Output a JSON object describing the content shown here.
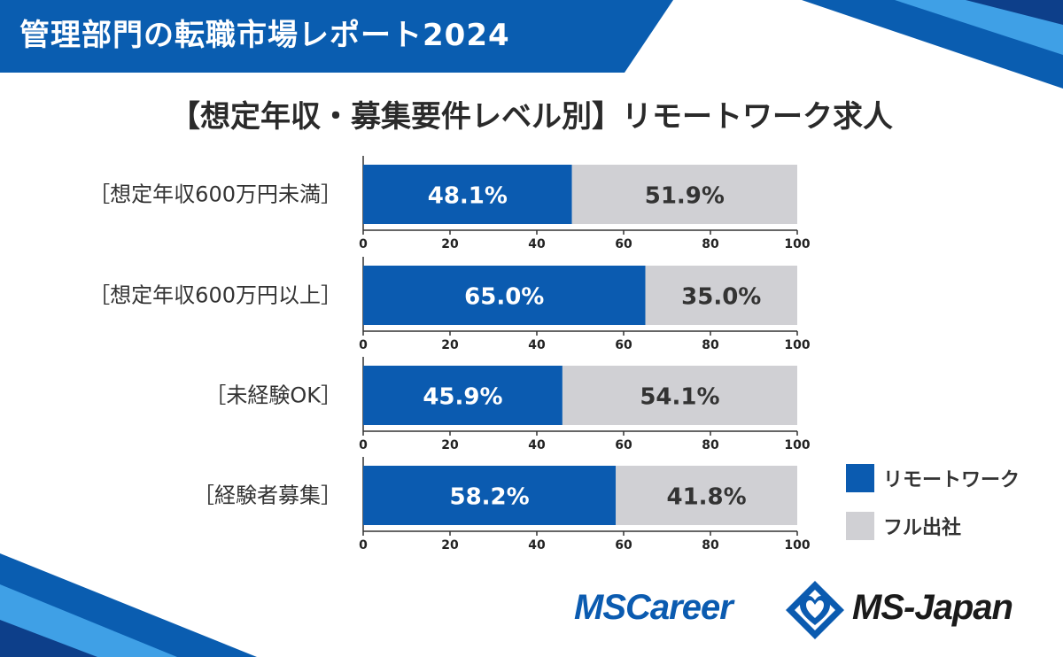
{
  "header": {
    "banner_title": "管理部門の転職市場レポート2024"
  },
  "chart_title": "【想定年収・募集要件レベル別】リモートワーク求人",
  "colors": {
    "remote": "#0b5bb0",
    "office": "#d0d0d4",
    "banner": "#0a5db0",
    "text": "#333333"
  },
  "legend": [
    {
      "label": "リモートワーク",
      "color": "#0b5bb0"
    },
    {
      "label": "フル出社",
      "color": "#d0d0d4"
    }
  ],
  "chart_data": {
    "type": "bar",
    "orientation": "horizontal",
    "stacked": true,
    "title": "【想定年収・募集要件レベル別】リモートワーク求人",
    "categories": [
      "［想定年収600万円未満］",
      "［想定年収600万円以上］",
      "［未経験OK］",
      "［経験者募集］"
    ],
    "series": [
      {
        "name": "リモートワーク",
        "values": [
          48.1,
          65.0,
          45.9,
          58.2
        ],
        "labels": [
          "48.1%",
          "65.0%",
          "45.9%",
          "58.2%"
        ]
      },
      {
        "name": "フル出社",
        "values": [
          51.9,
          35.0,
          54.1,
          41.8
        ],
        "labels": [
          "51.9%",
          "35.0%",
          "54.1%",
          "41.8%"
        ]
      }
    ],
    "xlim": [
      0,
      100
    ],
    "xticks": [
      "0",
      "20",
      "40",
      "60",
      "80",
      "100"
    ],
    "legend_position": "bottom-right"
  },
  "logos": {
    "left": "MSCareer",
    "right": "MS-Japan"
  }
}
